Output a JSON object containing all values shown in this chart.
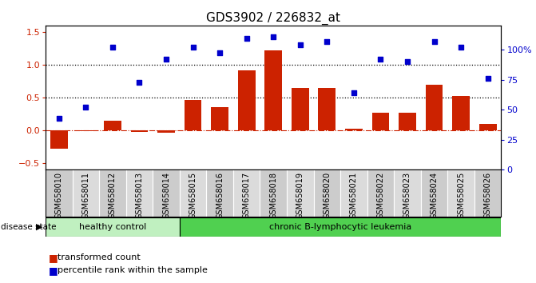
{
  "title": "GDS3902 / 226832_at",
  "samples": [
    "GSM658010",
    "GSM658011",
    "GSM658012",
    "GSM658013",
    "GSM658014",
    "GSM658015",
    "GSM658016",
    "GSM658017",
    "GSM658018",
    "GSM658019",
    "GSM658020",
    "GSM658021",
    "GSM658022",
    "GSM658023",
    "GSM658024",
    "GSM658025",
    "GSM658026"
  ],
  "bar_values": [
    -0.28,
    -0.01,
    0.15,
    -0.02,
    -0.04,
    0.46,
    0.35,
    0.91,
    1.22,
    0.65,
    0.65,
    0.03,
    0.27,
    0.27,
    0.7,
    0.53,
    0.1
  ],
  "dot_values": [
    0.18,
    0.35,
    1.27,
    0.73,
    1.09,
    1.27,
    1.19,
    1.4,
    1.43,
    1.3,
    1.35,
    0.57,
    1.09,
    1.05,
    1.35,
    1.27,
    0.8
  ],
  "healthy_control_count": 5,
  "bar_color": "#cc2200",
  "dot_color": "#0000cc",
  "ylim": [
    -0.6,
    1.6
  ],
  "left_yticks": [
    -0.5,
    0.0,
    0.5,
    1.0,
    1.5
  ],
  "right_ylim": [
    0,
    120
  ],
  "right_yticks": [
    0,
    25,
    50,
    75,
    100
  ],
  "right_yticklabels": [
    "0",
    "25",
    "50",
    "75",
    "100%"
  ],
  "hlines": [
    0.5,
    1.0
  ],
  "healthy_color": "#c0f0c0",
  "leukemia_color": "#50d050",
  "bg_color": "#ffffff",
  "xtick_bg": "#cccccc",
  "title_fontsize": 11,
  "label_fontsize": 8,
  "ytick_fontsize": 8,
  "xtick_fontsize": 7
}
